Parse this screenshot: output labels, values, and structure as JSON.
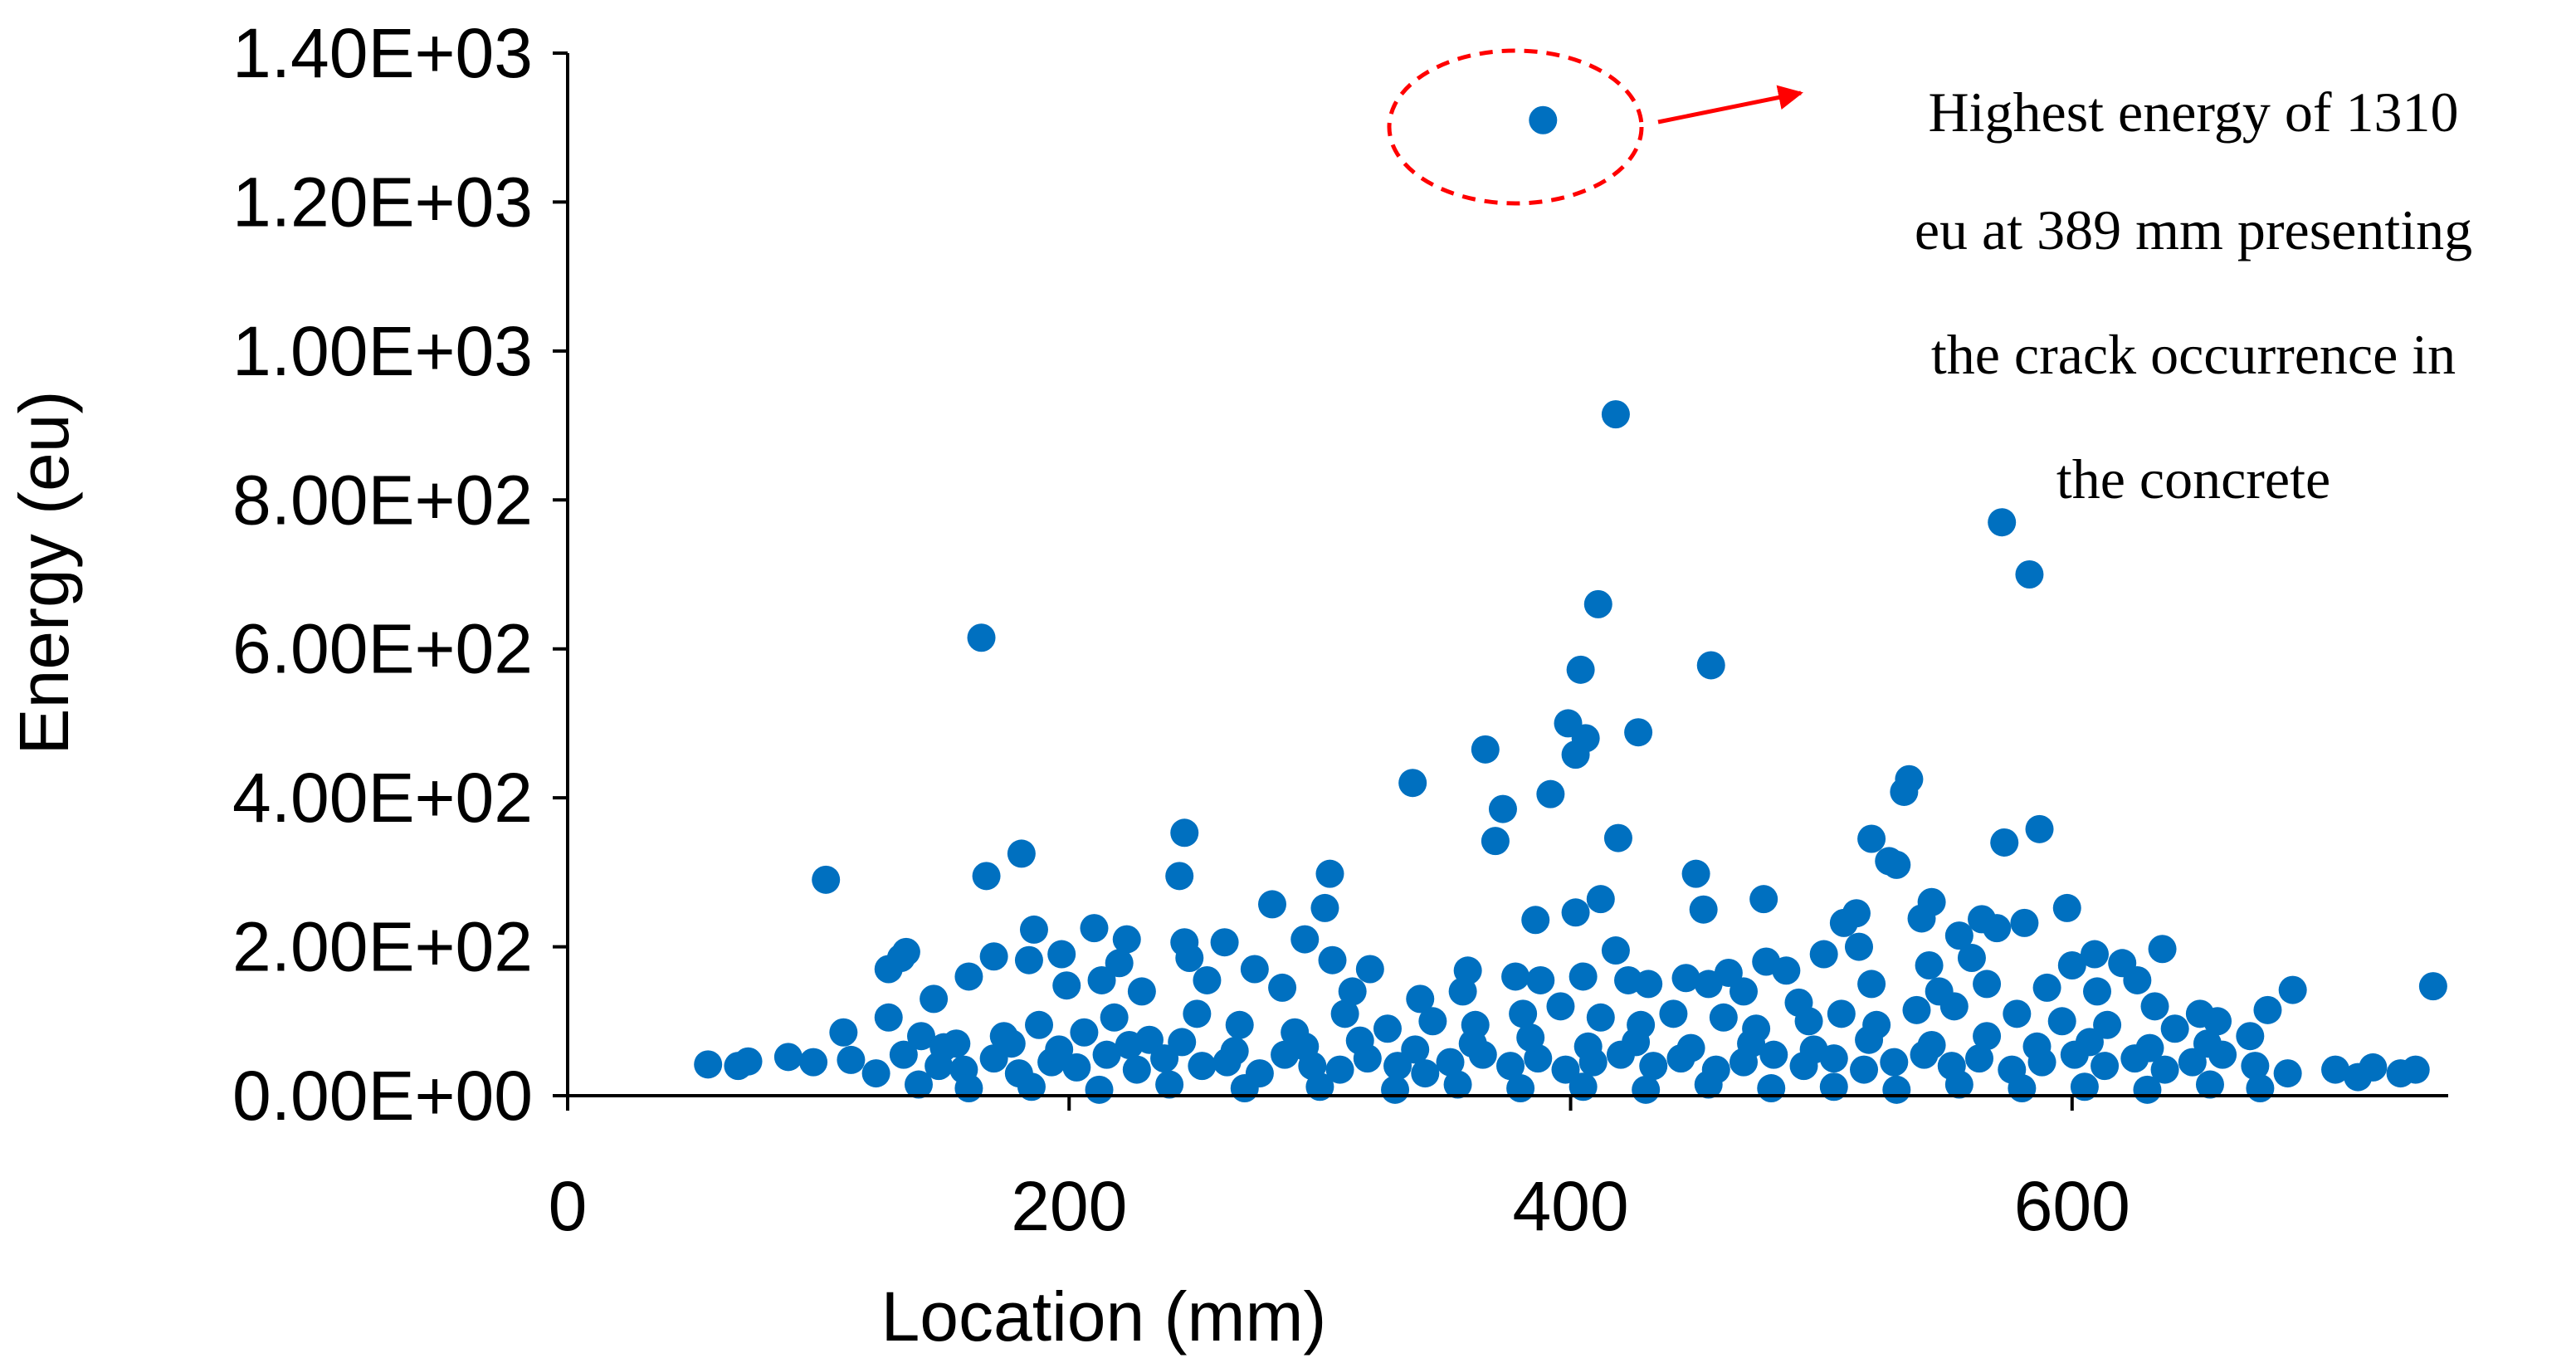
{
  "chart_data": {
    "type": "scatter",
    "xlabel": "Location (mm)",
    "ylabel": "Energy (eu)",
    "xlim": [
      0,
      750
    ],
    "ylim": [
      0,
      1400
    ],
    "x_ticks": [
      0,
      200,
      400,
      600
    ],
    "x_tick_labels": [
      "0",
      "200",
      "400",
      "600"
    ],
    "y_ticks": [
      0,
      200,
      400,
      600,
      800,
      1000,
      1200,
      1400
    ],
    "y_tick_labels": [
      "0.00E+00",
      "2.00E+02",
      "4.00E+02",
      "6.00E+02",
      "8.00E+02",
      "1.00E+03",
      "1.20E+03",
      "1.40E+03"
    ],
    "grid": false,
    "legend": "none",
    "colors": {
      "marker": "#0070C0",
      "annotation": "#FF0000"
    },
    "annotation": {
      "lines": [
        "Highest energy of 1310",
        "eu at 389 mm presenting",
        "the crack occurrence in",
        "the concrete"
      ],
      "target": {
        "x": 389,
        "y": 1310
      }
    },
    "series": [
      {
        "points": [
          [
            389,
            1310
          ],
          [
            418,
            915
          ],
          [
            572,
            770
          ],
          [
            583,
            700
          ],
          [
            165,
            615
          ],
          [
            411,
            660
          ],
          [
            456,
            578
          ],
          [
            404,
            572
          ],
          [
            399,
            500
          ],
          [
            406,
            480
          ],
          [
            402,
            458
          ],
          [
            427,
            488
          ],
          [
            366,
            465
          ],
          [
            337,
            420
          ],
          [
            535,
            425
          ],
          [
            533,
            408
          ],
          [
            392,
            405
          ],
          [
            373,
            385
          ],
          [
            587,
            358
          ],
          [
            246,
            353
          ],
          [
            370,
            342
          ],
          [
            419,
            346
          ],
          [
            573,
            340
          ],
          [
            520,
            345
          ],
          [
            181,
            325
          ],
          [
            527,
            315
          ],
          [
            103,
            290
          ],
          [
            167,
            295
          ],
          [
            244,
            295
          ],
          [
            304,
            298
          ],
          [
            450,
            298
          ],
          [
            530,
            310
          ],
          [
            477,
            264
          ],
          [
            281,
            257
          ],
          [
            302,
            252
          ],
          [
            412,
            264
          ],
          [
            544,
            260
          ],
          [
            598,
            252
          ],
          [
            453,
            250
          ],
          [
            386,
            236
          ],
          [
            402,
            246
          ],
          [
            540,
            238
          ],
          [
            564,
            237
          ],
          [
            581,
            232
          ],
          [
            509,
            232
          ],
          [
            514,
            245
          ],
          [
            210,
            225
          ],
          [
            186,
            223
          ],
          [
            223,
            210
          ],
          [
            246,
            206
          ],
          [
            262,
            206
          ],
          [
            294,
            210
          ],
          [
            515,
            200
          ],
          [
            555,
            215
          ],
          [
            570,
            225
          ],
          [
            636,
            197
          ],
          [
            609,
            190
          ],
          [
            197,
            190
          ],
          [
            135,
            193
          ],
          [
            133,
            185
          ],
          [
            170,
            187
          ],
          [
            248,
            185
          ],
          [
            128,
            170
          ],
          [
            160,
            160
          ],
          [
            184,
            182
          ],
          [
            220,
            178
          ],
          [
            274,
            170
          ],
          [
            305,
            182
          ],
          [
            320,
            170
          ],
          [
            359,
            168
          ],
          [
            378,
            160
          ],
          [
            405,
            160
          ],
          [
            418,
            195
          ],
          [
            431,
            150
          ],
          [
            446,
            158
          ],
          [
            463,
            165
          ],
          [
            478,
            180
          ],
          [
            486,
            168
          ],
          [
            501,
            190
          ],
          [
            543,
            175
          ],
          [
            560,
            185
          ],
          [
            600,
            175
          ],
          [
            620,
            178
          ],
          [
            626,
            155
          ],
          [
            651,
            110
          ],
          [
            678,
            115
          ],
          [
            688,
            142
          ],
          [
            744,
            147
          ],
          [
            146,
            130
          ],
          [
            199,
            148
          ],
          [
            213,
            155
          ],
          [
            229,
            140
          ],
          [
            255,
            155
          ],
          [
            285,
            145
          ],
          [
            313,
            140
          ],
          [
            340,
            130
          ],
          [
            357,
            140
          ],
          [
            388,
            155
          ],
          [
            423,
            155
          ],
          [
            455,
            150
          ],
          [
            469,
            140
          ],
          [
            491,
            125
          ],
          [
            520,
            150
          ],
          [
            547,
            140
          ],
          [
            566,
            150
          ],
          [
            590,
            145
          ],
          [
            610,
            140
          ],
          [
            633,
            120
          ],
          [
            110,
            85
          ],
          [
            128,
            105
          ],
          [
            141,
            80
          ],
          [
            155,
            70
          ],
          [
            174,
            80
          ],
          [
            188,
            95
          ],
          [
            206,
            85
          ],
          [
            218,
            105
          ],
          [
            232,
            75
          ],
          [
            251,
            110
          ],
          [
            268,
            95
          ],
          [
            290,
            85
          ],
          [
            310,
            110
          ],
          [
            327,
            90
          ],
          [
            345,
            100
          ],
          [
            362,
            95
          ],
          [
            381,
            110
          ],
          [
            396,
            120
          ],
          [
            412,
            105
          ],
          [
            428,
            95
          ],
          [
            441,
            110
          ],
          [
            461,
            105
          ],
          [
            474,
            90
          ],
          [
            495,
            100
          ],
          [
            508,
            110
          ],
          [
            522,
            95
          ],
          [
            538,
            115
          ],
          [
            553,
            120
          ],
          [
            578,
            110
          ],
          [
            596,
            100
          ],
          [
            614,
            95
          ],
          [
            641,
            90
          ],
          [
            658,
            100
          ],
          [
            671,
            80
          ],
          [
            56,
            42
          ],
          [
            68,
            40
          ],
          [
            72,
            46
          ],
          [
            88,
            52
          ],
          [
            98,
            45
          ],
          [
            113,
            48
          ],
          [
            123,
            30
          ],
          [
            134,
            55
          ],
          [
            148,
            40
          ],
          [
            158,
            35
          ],
          [
            170,
            50
          ],
          [
            180,
            30
          ],
          [
            193,
            45
          ],
          [
            203,
            38
          ],
          [
            215,
            55
          ],
          [
            227,
            35
          ],
          [
            238,
            50
          ],
          [
            253,
            40
          ],
          [
            263,
            45
          ],
          [
            276,
            30
          ],
          [
            286,
            55
          ],
          [
            297,
            40
          ],
          [
            308,
            35
          ],
          [
            319,
            50
          ],
          [
            331,
            40
          ],
          [
            342,
            30
          ],
          [
            352,
            45
          ],
          [
            365,
            55
          ],
          [
            376,
            40
          ],
          [
            387,
            50
          ],
          [
            398,
            35
          ],
          [
            409,
            45
          ],
          [
            420,
            55
          ],
          [
            433,
            40
          ],
          [
            444,
            50
          ],
          [
            458,
            35
          ],
          [
            469,
            45
          ],
          [
            481,
            55
          ],
          [
            493,
            40
          ],
          [
            505,
            50
          ],
          [
            517,
            35
          ],
          [
            529,
            45
          ],
          [
            541,
            55
          ],
          [
            552,
            40
          ],
          [
            563,
            50
          ],
          [
            576,
            35
          ],
          [
            588,
            45
          ],
          [
            601,
            55
          ],
          [
            613,
            40
          ],
          [
            625,
            50
          ],
          [
            637,
            35
          ],
          [
            648,
            45
          ],
          [
            660,
            55
          ],
          [
            673,
            40
          ],
          [
            686,
            30
          ],
          [
            705,
            35
          ],
          [
            714,
            25
          ],
          [
            720,
            38
          ],
          [
            731,
            30
          ],
          [
            737,
            35
          ],
          [
            140,
            15
          ],
          [
            160,
            10
          ],
          [
            185,
            12
          ],
          [
            212,
            8
          ],
          [
            240,
            15
          ],
          [
            270,
            10
          ],
          [
            300,
            12
          ],
          [
            330,
            8
          ],
          [
            355,
            15
          ],
          [
            380,
            10
          ],
          [
            405,
            12
          ],
          [
            430,
            8
          ],
          [
            455,
            15
          ],
          [
            480,
            10
          ],
          [
            505,
            12
          ],
          [
            530,
            8
          ],
          [
            555,
            15
          ],
          [
            580,
            10
          ],
          [
            605,
            12
          ],
          [
            630,
            8
          ],
          [
            655,
            15
          ],
          [
            675,
            10
          ],
          [
            150,
            65
          ],
          [
            177,
            70
          ],
          [
            196,
            62
          ],
          [
            224,
            68
          ],
          [
            245,
            72
          ],
          [
            266,
            60
          ],
          [
            294,
            66
          ],
          [
            316,
            74
          ],
          [
            338,
            62
          ],
          [
            361,
            70
          ],
          [
            384,
            78
          ],
          [
            407,
            66
          ],
          [
            426,
            72
          ],
          [
            448,
            64
          ],
          [
            472,
            70
          ],
          [
            497,
            62
          ],
          [
            519,
            75
          ],
          [
            544,
            68
          ],
          [
            566,
            80
          ],
          [
            586,
            66
          ],
          [
            607,
            72
          ],
          [
            631,
            64
          ],
          [
            654,
            70
          ]
        ]
      }
    ]
  }
}
